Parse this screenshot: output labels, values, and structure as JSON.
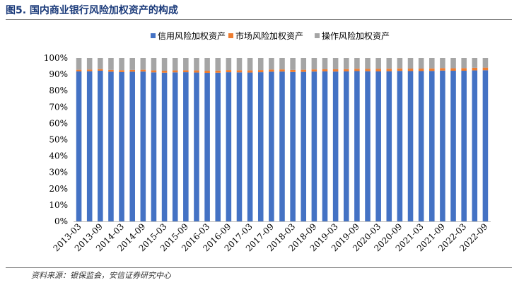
{
  "figure": {
    "title": "图5. 国内商业银行风险加权资产的构成",
    "source": "资料来源：银保监会，安信证券研究中心"
  },
  "colors": {
    "credit": "#4472c4",
    "market": "#ed7d31",
    "operational": "#a5a5a5",
    "title": "#1a3a7a"
  },
  "chart_data": {
    "type": "bar",
    "stacked": true,
    "title": "图5. 国内商业银行风险加权资产的构成",
    "xlabel": "",
    "ylabel": "",
    "ylim": [
      0,
      100
    ],
    "yticks": [
      "0%",
      "10%",
      "20%",
      "30%",
      "40%",
      "50%",
      "60%",
      "70%",
      "80%",
      "90%",
      "100%"
    ],
    "legend_position": "top",
    "categories": [
      "2013-03",
      "2013-06",
      "2013-09",
      "2013-12",
      "2014-03",
      "2014-06",
      "2014-09",
      "2014-12",
      "2015-03",
      "2015-06",
      "2015-09",
      "2015-12",
      "2016-03",
      "2016-06",
      "2016-09",
      "2016-12",
      "2017-03",
      "2017-06",
      "2017-09",
      "2017-12",
      "2018-03",
      "2018-06",
      "2018-09",
      "2018-12",
      "2019-03",
      "2019-06",
      "2019-09",
      "2019-12",
      "2020-03",
      "2020-06",
      "2020-09",
      "2020-12",
      "2021-03",
      "2021-06",
      "2021-09",
      "2021-12",
      "2022-03",
      "2022-06",
      "2022-09"
    ],
    "x_tick_labels": [
      "2013-03",
      "2013-09",
      "2014-03",
      "2014-09",
      "2015-03",
      "2015-09",
      "2016-03",
      "2016-09",
      "2017-03",
      "2017-09",
      "2018-03",
      "2018-09",
      "2019-03",
      "2019-09",
      "2020-03",
      "2020-09",
      "2021-03",
      "2021-09",
      "2022-03",
      "2022-09"
    ],
    "series": [
      {
        "name": "信用风险加权资产",
        "color_key": "credit",
        "values": [
          91.8,
          91.9,
          92.2,
          91.6,
          91.4,
          91.6,
          91.7,
          91.2,
          91.0,
          91.2,
          91.3,
          91.1,
          90.9,
          91.0,
          91.3,
          91.2,
          91.1,
          91.3,
          91.6,
          91.7,
          91.4,
          91.5,
          91.7,
          91.8,
          91.7,
          91.8,
          92.0,
          91.9,
          91.8,
          91.9,
          92.1,
          92.0,
          92.0,
          92.1,
          92.3,
          92.2,
          92.2,
          92.4,
          92.5
        ]
      },
      {
        "name": "市场风险加权资产",
        "color_key": "market",
        "values": [
          1.0,
          1.0,
          1.0,
          1.1,
          1.1,
          1.1,
          1.1,
          1.2,
          1.2,
          1.2,
          1.2,
          1.3,
          1.3,
          1.3,
          1.3,
          1.3,
          1.3,
          1.3,
          1.3,
          1.3,
          1.3,
          1.3,
          1.3,
          1.3,
          1.4,
          1.4,
          1.4,
          1.4,
          1.5,
          1.5,
          1.5,
          1.5,
          1.5,
          1.5,
          1.5,
          1.5,
          1.6,
          1.6,
          1.6
        ]
      },
      {
        "name": "操作风险加权资产",
        "color_key": "operational",
        "values": [
          7.2,
          7.1,
          6.8,
          7.3,
          7.5,
          7.3,
          7.2,
          7.6,
          7.8,
          7.6,
          7.5,
          7.6,
          7.8,
          7.7,
          7.4,
          7.5,
          7.6,
          7.4,
          7.1,
          7.0,
          7.3,
          7.2,
          7.0,
          6.9,
          6.9,
          6.8,
          6.6,
          6.7,
          6.7,
          6.6,
          6.4,
          6.5,
          6.5,
          6.4,
          6.2,
          6.3,
          6.2,
          6.0,
          5.9
        ]
      }
    ]
  }
}
